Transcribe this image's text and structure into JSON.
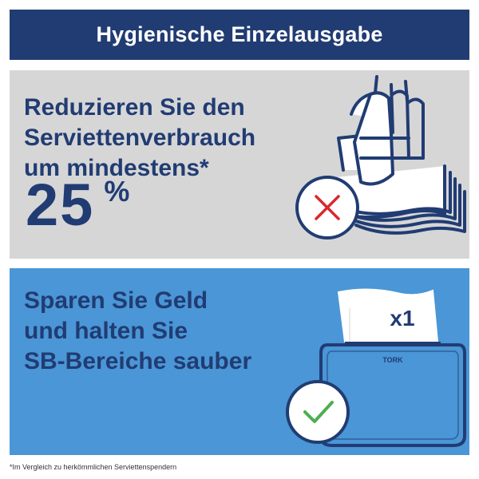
{
  "header": {
    "title": "Hygienische Einzelausgabe"
  },
  "gray_panel": {
    "lines": [
      "Reduzieren Sie den",
      "Serviettenverbrauch",
      "um mindestens*"
    ],
    "number": "25",
    "unit": "%"
  },
  "blue_panel": {
    "lines": [
      "Sparen Sie Geld",
      "und halten Sie",
      "SB-Bereiche sauber"
    ],
    "napkin_label": "x1",
    "dispenser_brand": "TORK"
  },
  "footnote": "*Im Vergleich zu herkömmlichen Serviettenspendern",
  "colors": {
    "navy": "#213c73",
    "gray_bg": "#d6d6d6",
    "blue_bg": "#4a96d6",
    "cross_red": "#d9282f",
    "check_green": "#4caf50"
  },
  "icons": [
    "hand-grabbing-napkins-icon",
    "cross-circle-icon",
    "dispenser-icon",
    "check-circle-icon"
  ]
}
